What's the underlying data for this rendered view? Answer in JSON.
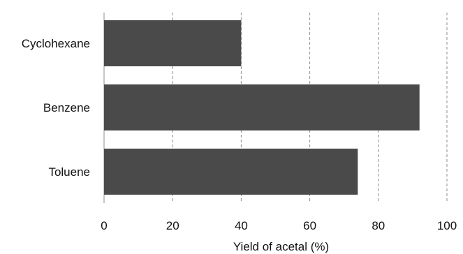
{
  "chart_data": {
    "type": "bar",
    "orientation": "horizontal",
    "categories": [
      "Cyclohexane",
      "Benzene",
      "Toluene"
    ],
    "values": [
      40,
      92,
      74
    ],
    "title": "",
    "xlabel": "Yield of acetal (%)",
    "ylabel": "",
    "xlim": [
      0,
      100
    ],
    "xticks": [
      0,
      20,
      40,
      60,
      80,
      100
    ],
    "grid": true,
    "bar_color": "#4a4a4a"
  }
}
